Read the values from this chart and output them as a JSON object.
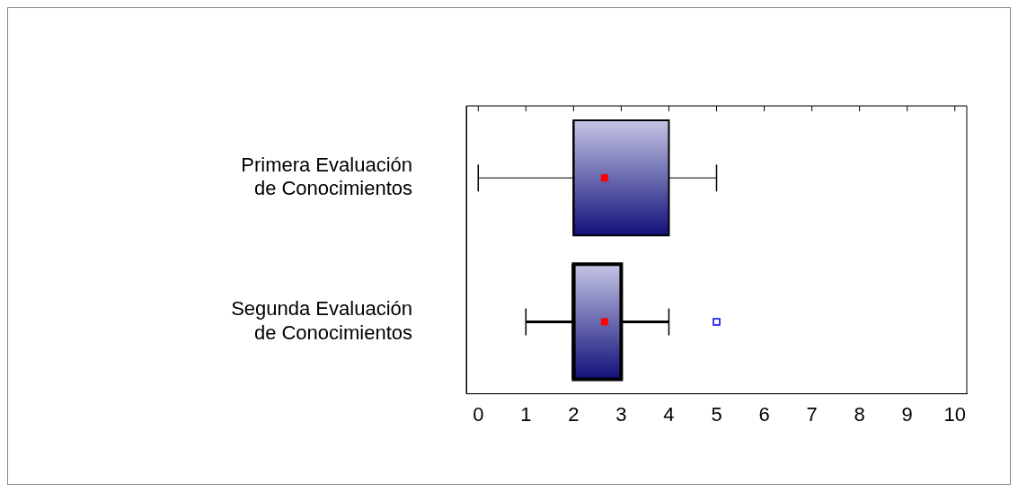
{
  "chart_data": {
    "type": "box",
    "orientation": "horizontal",
    "categories": [
      "Primera Evaluación de Conocimientos",
      "Segunda Evaluación de Conocimientos"
    ],
    "series": [
      {
        "color": "#10107a",
        "boxes": [
          {
            "low": 0,
            "q1": 2,
            "median": 2,
            "q3": 4,
            "high": 5,
            "mean": 2.65
          },
          {
            "low": 1,
            "q1": 2,
            "median": 2,
            "q3": 3,
            "high": 4,
            "mean": 2.65,
            "outliers": [
              5
            ]
          }
        ]
      }
    ],
    "xlim": [
      -0.25,
      10.25
    ],
    "xticks": [
      0,
      1,
      2,
      3,
      4,
      5,
      6,
      7,
      8,
      9,
      10
    ],
    "grid": false,
    "legend": false
  }
}
